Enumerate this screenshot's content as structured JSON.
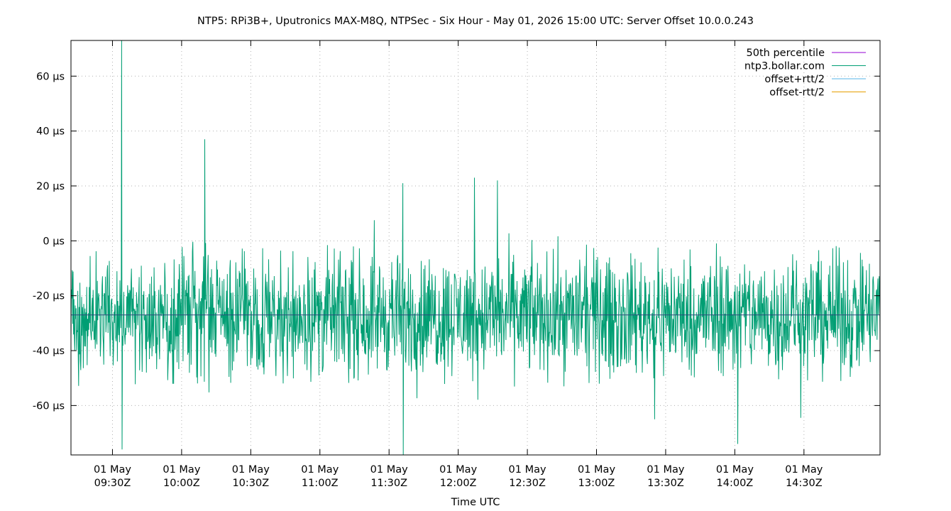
{
  "chart_data": {
    "type": "line",
    "title": "NTP5: RPi3B+, Uputronics MAX-M8Q, NTPSec - Six Hour - May 01, 2026 15:00 UTC: Server Offset 10.0.0.243",
    "xlabel": "Time UTC",
    "ylabel": "",
    "y_unit": "µs",
    "ylim": [
      -78,
      73
    ],
    "xlim": [
      "09:12Z",
      "15:03Z"
    ],
    "grid": true,
    "legend_position": "top-right",
    "y_ticks": [
      {
        "value": 60,
        "label": "60 µs"
      },
      {
        "value": 40,
        "label": "40 µs"
      },
      {
        "value": 20,
        "label": "20 µs"
      },
      {
        "value": 0,
        "label": "0 µs"
      },
      {
        "value": -20,
        "label": "-20 µs"
      },
      {
        "value": -40,
        "label": "-40 µs"
      },
      {
        "value": -60,
        "label": "-60 µs"
      }
    ],
    "x_ticks": [
      {
        "time": "09:30Z",
        "date": "01 May"
      },
      {
        "time": "10:00Z",
        "date": "01 May"
      },
      {
        "time": "10:30Z",
        "date": "01 May"
      },
      {
        "time": "11:00Z",
        "date": "01 May"
      },
      {
        "time": "11:30Z",
        "date": "01 May"
      },
      {
        "time": "12:00Z",
        "date": "01 May"
      },
      {
        "time": "12:30Z",
        "date": "01 May"
      },
      {
        "time": "13:00Z",
        "date": "01 May"
      },
      {
        "time": "13:30Z",
        "date": "01 May"
      },
      {
        "time": "14:00Z",
        "date": "01 May"
      },
      {
        "time": "14:30Z",
        "date": "01 May"
      }
    ],
    "series": [
      {
        "name": "50th percentile",
        "color": "#9400d3",
        "value": -27
      },
      {
        "name": "ntp3.bollar.com",
        "color": "#009e73",
        "summary": {
          "median": -27,
          "typical_min": -45,
          "typical_max": 5
        }
      },
      {
        "name": "offset+rtt/2",
        "color": "#56b4e9"
      },
      {
        "name": "offset-rtt/2",
        "color": "#e69f00"
      }
    ],
    "spikes": [
      {
        "time": "09:34Z",
        "value": 73
      },
      {
        "time": "09:34Z",
        "value": -76
      },
      {
        "time": "10:10Z",
        "value": 37
      },
      {
        "time": "11:36Z",
        "value": -78
      },
      {
        "time": "11:36Z",
        "value": 21
      },
      {
        "time": "12:07Z",
        "value": 23
      },
      {
        "time": "12:17Z",
        "value": 22
      },
      {
        "time": "13:25Z",
        "value": -65
      },
      {
        "time": "14:01Z",
        "value": -74
      }
    ]
  }
}
